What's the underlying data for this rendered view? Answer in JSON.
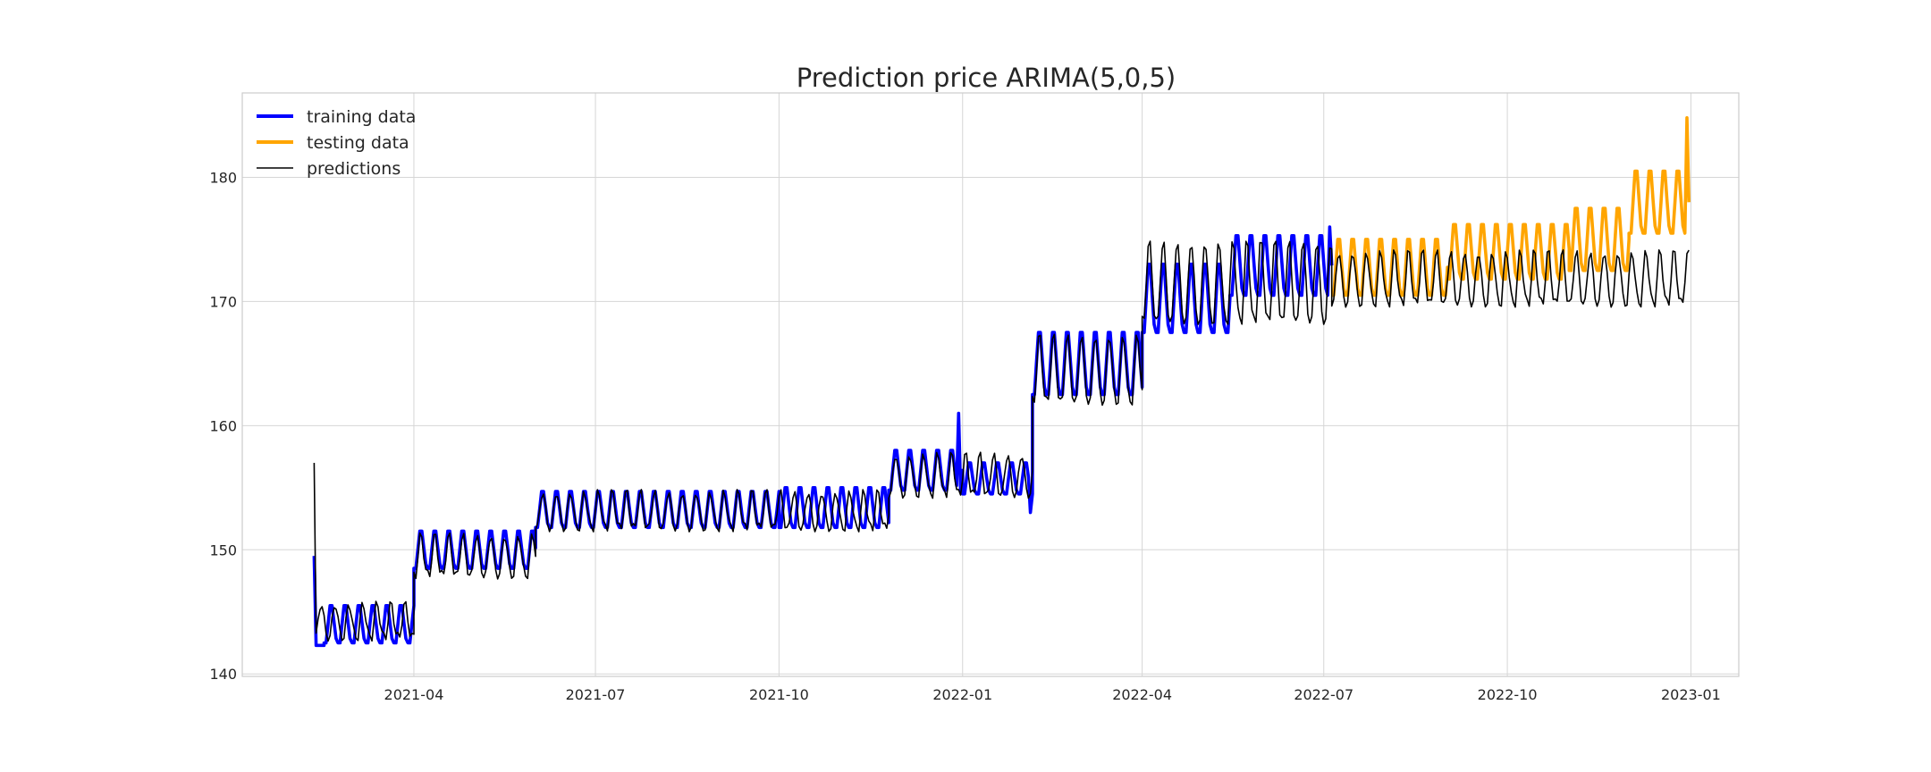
{
  "chart_data": {
    "type": "line",
    "title": "Prediction price ARIMA(5,0,5)",
    "xlabel": "",
    "ylabel": "",
    "x_axis": {
      "type": "date",
      "range": [
        "2021-01-05",
        "2023-01-25"
      ],
      "ticks": [
        "2021-04",
        "2021-07",
        "2021-10",
        "2022-01",
        "2022-04",
        "2022-07",
        "2022-10",
        "2023-01"
      ]
    },
    "y_axis": {
      "range": [
        139.8,
        186.8
      ],
      "ticks": [
        "140",
        "150",
        "160",
        "170",
        "180"
      ]
    },
    "grid": true,
    "legend": {
      "position": "top-left",
      "entries": [
        "training data",
        "testing data",
        "predictions"
      ]
    },
    "series": [
      {
        "name": "training data",
        "color": "#0000ff",
        "segments": [
          {
            "start": "2021-02-10",
            "end": "2021-02-15",
            "base": 142.3,
            "peak": 142.3
          },
          {
            "start": "2021-02-15",
            "end": "2021-04-01",
            "base": 142.5,
            "peak": 145.5
          },
          {
            "start": "2021-04-01",
            "end": "2021-06-01",
            "base": 148.5,
            "peak": 151.5
          },
          {
            "start": "2021-06-01",
            "end": "2021-10-01",
            "base": 151.8,
            "peak": 154.7
          },
          {
            "start": "2021-10-01",
            "end": "2021-11-25",
            "base": 151.8,
            "peak": 155.0
          },
          {
            "start": "2021-11-25",
            "end": "2022-01-01",
            "base": 154.8,
            "peak": 158.0
          },
          {
            "start": "2022-01-01",
            "end": "2022-02-05",
            "base": 154.5,
            "peak": 157.0
          },
          {
            "start": "2022-02-05",
            "end": "2022-04-01",
            "base": 162.5,
            "peak": 167.5
          },
          {
            "start": "2022-04-01",
            "end": "2022-05-15",
            "base": 167.5,
            "peak": 173.0
          },
          {
            "start": "2022-05-15",
            "end": "2022-07-05",
            "base": 170.5,
            "peak": 175.3
          }
        ],
        "key_points": [
          {
            "x": "2021-02-10",
            "y": 149.5
          },
          {
            "x": "2021-12-30",
            "y": 161.0
          },
          {
            "x": "2022-02-04",
            "y": 153.0
          },
          {
            "x": "2022-07-04",
            "y": 176.0
          }
        ]
      },
      {
        "name": "testing data",
        "color": "#ffa500",
        "segments": [
          {
            "start": "2022-07-05",
            "end": "2022-09-01",
            "base": 170.5,
            "peak": 175.0
          },
          {
            "start": "2022-09-01",
            "end": "2022-11-01",
            "base": 171.8,
            "peak": 176.2
          },
          {
            "start": "2022-11-01",
            "end": "2022-12-01",
            "base": 172.5,
            "peak": 177.5
          },
          {
            "start": "2022-12-01",
            "end": "2022-12-31",
            "base": 175.5,
            "peak": 180.5
          }
        ],
        "key_points": [
          {
            "x": "2022-12-30",
            "y": 184.8
          }
        ]
      },
      {
        "name": "predictions",
        "color": "#000000",
        "segments": [
          {
            "start": "2021-02-10",
            "end": "2021-04-01",
            "base": 143.0,
            "peak": 145.5
          },
          {
            "start": "2021-04-01",
            "end": "2021-06-01",
            "base": 148.0,
            "peak": 151.0
          },
          {
            "start": "2021-06-01",
            "end": "2021-11-25",
            "base": 151.8,
            "peak": 154.5
          },
          {
            "start": "2021-11-25",
            "end": "2022-02-05",
            "base": 154.5,
            "peak": 157.5
          },
          {
            "start": "2022-02-05",
            "end": "2022-04-01",
            "base": 162.0,
            "peak": 167.0
          },
          {
            "start": "2022-04-01",
            "end": "2022-07-05",
            "base": 168.5,
            "peak": 174.5
          },
          {
            "start": "2022-07-05",
            "end": "2022-12-31",
            "base": 169.9,
            "peak": 173.8
          }
        ],
        "key_points": [
          {
            "x": "2021-02-10",
            "y": 157.0
          }
        ]
      }
    ]
  },
  "colors": {
    "training": "#0000ff",
    "testing": "#ffa500",
    "predictions": "#000000",
    "grid": "#d6d6d6"
  }
}
